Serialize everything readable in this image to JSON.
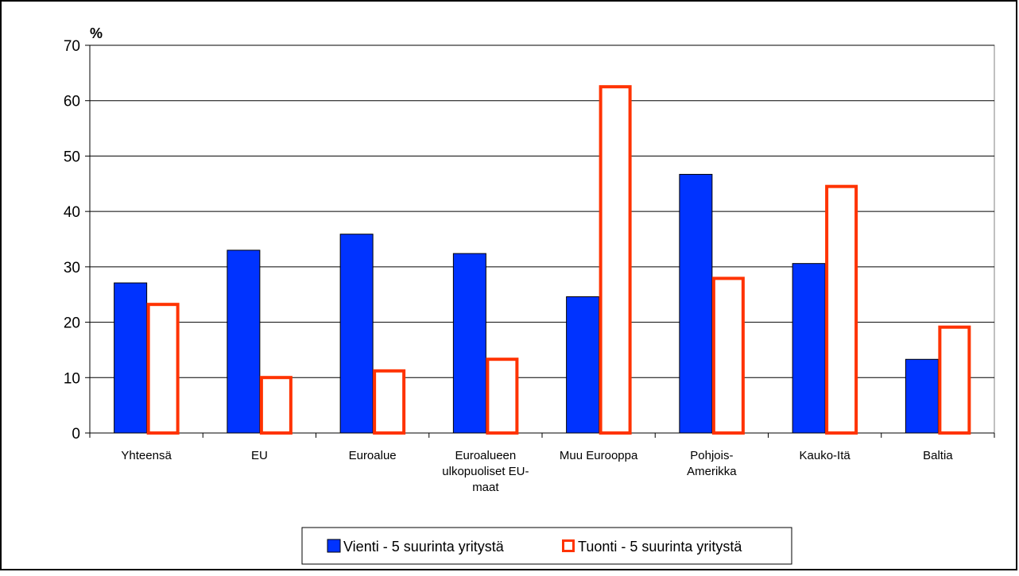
{
  "chart_data": {
    "type": "bar",
    "title": "",
    "xlabel": "",
    "ylabel": "%",
    "ylim": [
      0,
      70
    ],
    "yticks": [
      0,
      10,
      20,
      30,
      40,
      50,
      60,
      70
    ],
    "grid": true,
    "legend_position": "bottom",
    "categories": [
      [
        "Yhteensä"
      ],
      [
        "EU"
      ],
      [
        "Euroalue"
      ],
      [
        "Euroalueen",
        "ulkopuoliset EU-",
        "maat"
      ],
      [
        "Muu Eurooppa"
      ],
      [
        "Pohjois-",
        "Amerikka"
      ],
      [
        "Kauko-Itä"
      ],
      [
        "Baltia"
      ]
    ],
    "series": [
      {
        "name": "Vienti - 5 suurinta yritystä",
        "style": "filled",
        "fill": "#0033ff",
        "stroke": "#000000",
        "values": [
          27.1,
          33.0,
          35.9,
          32.4,
          24.6,
          46.7,
          30.6,
          13.3
        ]
      },
      {
        "name": "Tuonti - 5 suurinta yritystä",
        "style": "outline",
        "fill": "#ffffff",
        "stroke": "#ff3300",
        "values": [
          23.5,
          10.3,
          11.5,
          13.6,
          62.8,
          28.2,
          44.8,
          19.4
        ]
      }
    ]
  }
}
